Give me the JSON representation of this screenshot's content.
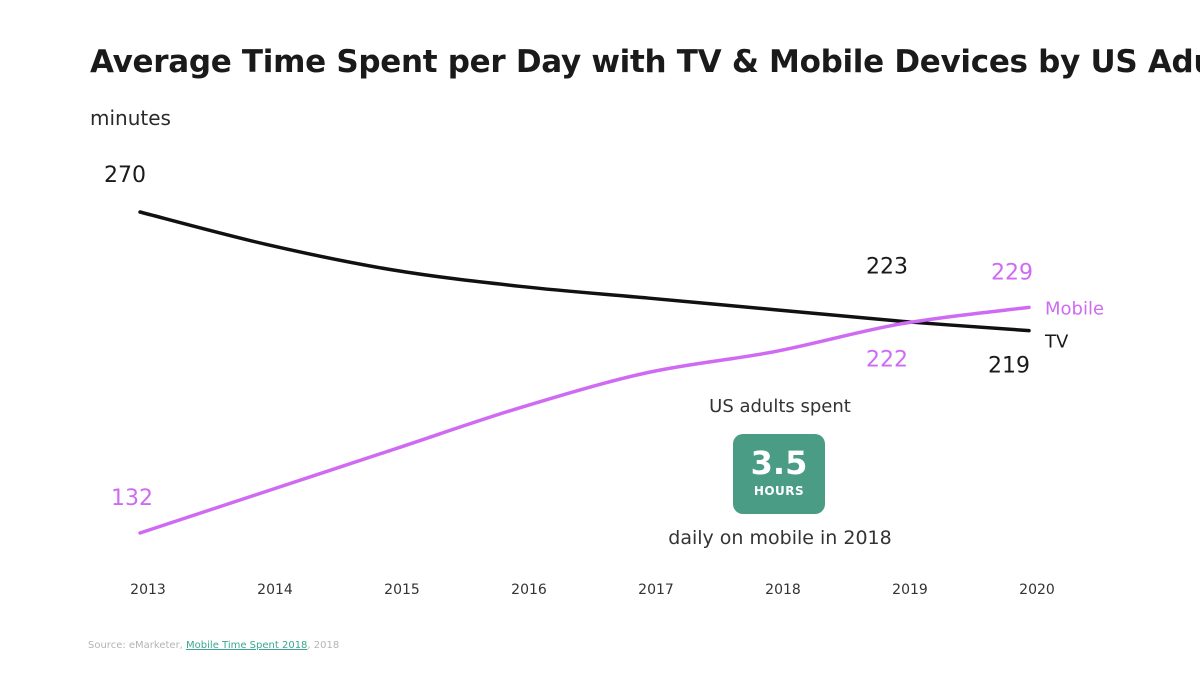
{
  "header": {
    "title": "Average Time Spent per Day with TV & Mobile Devices by US Adults",
    "unit": "minutes"
  },
  "callout": {
    "line1": "US adults spent",
    "big": "3.5",
    "small": "HOURS",
    "line2": "daily on mobile in 2018",
    "color": "#4a9d84"
  },
  "source": {
    "prefix": "Source: eMarketer, ",
    "link": "Mobile Time Spent 2018",
    "suffix": ", 2018"
  },
  "chart_data": {
    "type": "line",
    "x": [
      "2013",
      "2014",
      "2015",
      "2016",
      "2017",
      "2018",
      "2019",
      "2020"
    ],
    "ylim": [
      120,
      280
    ],
    "grid": false,
    "series": [
      {
        "name": "TV",
        "color": "#111111",
        "values": [
          270,
          256,
          245,
          238,
          233,
          228,
          223,
          219
        ]
      },
      {
        "name": "Mobile",
        "color": "#cf6bf3",
        "values": [
          132,
          150,
          168,
          186,
          201,
          210,
          222,
          229
        ]
      }
    ],
    "data_labels": [
      {
        "series": "TV",
        "index": 0,
        "text": "270"
      },
      {
        "series": "TV",
        "index": 6,
        "text": "223"
      },
      {
        "series": "TV",
        "index": 7,
        "text": "219"
      },
      {
        "series": "Mobile",
        "index": 0,
        "text": "132"
      },
      {
        "series": "Mobile",
        "index": 6,
        "text": "222"
      },
      {
        "series": "Mobile",
        "index": 7,
        "text": "229"
      }
    ]
  }
}
